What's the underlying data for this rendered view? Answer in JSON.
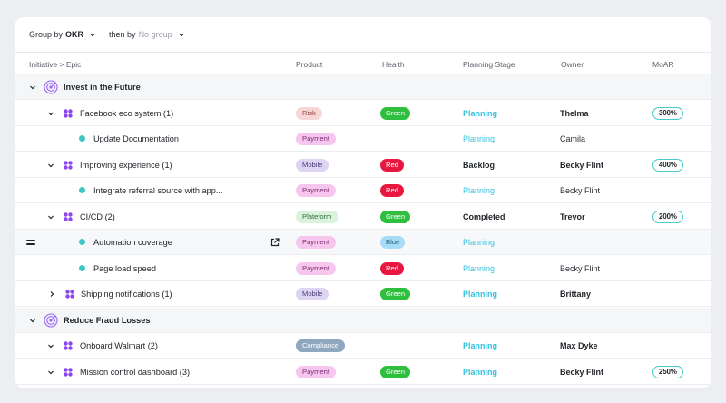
{
  "toolbar": {
    "group_by_label": "Group by",
    "group_by_value": "OKR",
    "then_by_label": "then by",
    "then_by_value": "No group"
  },
  "columns": {
    "initiative": "Initiative > Epic",
    "product": "Product",
    "health": "Health",
    "planning_stage": "Planning Stage",
    "owner": "Owner",
    "moar": "MoAR"
  },
  "colors": {
    "risk": "#f8d6d6",
    "payment": "#f7c6ef",
    "mobile": "#ddd4f3",
    "plateform": "#d9f3dc",
    "compliance": "#8fa7bf",
    "green": "#2fbf3f",
    "red": "#e8173f",
    "blue": "#a8dcf6",
    "stage_teal": "#35c2e0",
    "moar_border": "#45c9c9"
  },
  "rows": [
    {
      "kind": "group",
      "title": "Invest in the Future",
      "icon": "target-icon"
    },
    {
      "kind": "epic",
      "title": "Facebook eco system (1)",
      "product": "Risk",
      "health": "Green",
      "stage": "Planning",
      "owner": "Thelma",
      "moar": "300%"
    },
    {
      "kind": "child",
      "title": "Update Documentation",
      "product": "Payment",
      "health": "",
      "stage": "Planning",
      "owner": "Camila",
      "moar": ""
    },
    {
      "kind": "epic",
      "title": "Improving experience (1)",
      "product": "Mobile",
      "health": "Red",
      "stage": "Backlog",
      "owner": "Becky Flint",
      "moar": "400%"
    },
    {
      "kind": "child",
      "title": "Integrate referral source with app...",
      "product": "Payment",
      "health": "Red",
      "stage": "Planning",
      "owner": "Becky Flint",
      "moar": ""
    },
    {
      "kind": "epic",
      "title": "CI/CD (2)",
      "product": "Plateform",
      "health": "Green",
      "stage": "Completed",
      "owner": "Trevor",
      "moar": "200%"
    },
    {
      "kind": "child",
      "title": "Automation coverage",
      "product": "Payment",
      "health": "Blue",
      "stage": "Planning",
      "owner": "",
      "moar": ""
    },
    {
      "kind": "child",
      "title": "Page load speed",
      "product": "Payment",
      "health": "Red",
      "stage": "Planning",
      "owner": "Becky Flint",
      "moar": ""
    },
    {
      "kind": "epic",
      "title": "Shipping notifications (1)",
      "product": "Mobile",
      "health": "Green",
      "stage": "Planning",
      "owner": "Brittany",
      "moar": ""
    },
    {
      "kind": "group",
      "title": "Reduce Fraud Losses",
      "icon": "target-icon"
    },
    {
      "kind": "epic",
      "title": "Onboard Walmart (2)",
      "product": "Compliance",
      "health": "",
      "stage": "Planning",
      "owner": "Max Dyke",
      "moar": ""
    },
    {
      "kind": "epic",
      "title": "Mission control dashboard (3)",
      "product": "Payment",
      "health": "Green",
      "stage": "Planning",
      "owner": "Becky Flint",
      "moar": "250%"
    }
  ]
}
